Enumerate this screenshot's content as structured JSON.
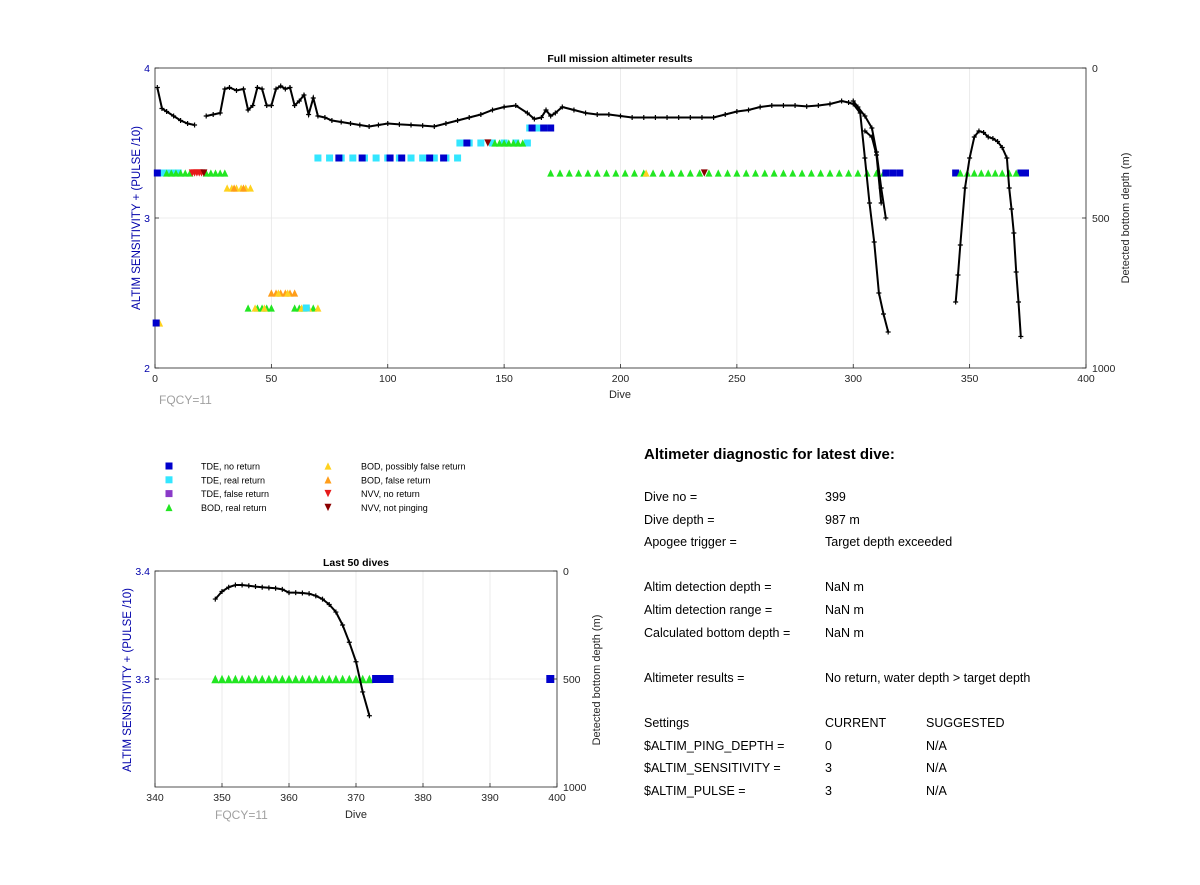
{
  "main_chart": {
    "title": "Full mission altimeter results",
    "annotation": "FQCY=11",
    "colors": {
      "tde_no": "#0000cc",
      "tde_real": "#33e6ff",
      "tde_false": "#8a3ac8",
      "bod_real": "#22e622",
      "bod_possible": "#ffd21f",
      "bod_false": "#ff9d1a",
      "nvv_no": "#e61a1a",
      "nvv_not": "#8b0000",
      "depth_line": "#000000",
      "left_axis": "#0000aa",
      "annotation": "#999999"
    }
  },
  "zoom_chart": {
    "title": "Last 50 dives",
    "annotation": "FQCY=11"
  },
  "legend": {
    "items": [
      {
        "label": "TDE, no return",
        "marker": "square",
        "color": "#0000cc"
      },
      {
        "label": "TDE, real return",
        "marker": "square",
        "color": "#33e6ff"
      },
      {
        "label": "TDE, false return",
        "marker": "square",
        "color": "#8a3ac8"
      },
      {
        "label": "BOD, real return",
        "marker": "triangle-up",
        "color": "#22e622"
      },
      {
        "label": "BOD, possibly false return",
        "marker": "triangle-up",
        "color": "#ffd21f"
      },
      {
        "label": "BOD, false return",
        "marker": "triangle-up",
        "color": "#ff9d1a"
      },
      {
        "label": "NVV, no return",
        "marker": "triangle-down",
        "color": "#e61a1a"
      },
      {
        "label": "NVV, not pinging",
        "marker": "triangle-down",
        "color": "#8b0000"
      }
    ]
  },
  "diagnostic": {
    "title": "Altimeter diagnostic for latest dive:",
    "dive_no_label": "Dive no =",
    "dive_no": "399",
    "dive_depth_label": "Dive depth =",
    "dive_depth": "987 m",
    "apogee_label": "Apogee trigger =",
    "apogee": "Target depth exceeded",
    "det_depth_label": "Altim detection depth =",
    "det_depth": "NaN m",
    "det_range_label": "Altim detection range =",
    "det_range": "NaN m",
    "calc_depth_label": "Calculated bottom depth =",
    "calc_depth": "NaN m",
    "results_label": "Altimeter results =",
    "results": "No return, water depth > target depth",
    "settings_label": "Settings",
    "current_label": "CURRENT",
    "suggested_label": "SUGGESTED",
    "settings": [
      {
        "name": "$ALTIM_PING_DEPTH =",
        "current": "0",
        "suggested": "N/A"
      },
      {
        "name": "$ALTIM_SENSITIVITY =",
        "current": "3",
        "suggested": "N/A"
      },
      {
        "name": "$ALTIM_PULSE =",
        "current": "3",
        "suggested": "N/A"
      }
    ]
  },
  "chart_data": [
    {
      "type": "scatter",
      "title": "Full mission altimeter results",
      "xlabel": "Dive",
      "ylabel": "ALTIM SENSITIVITY + (PULSE /10)",
      "y2label": "Detected bottom depth (m)",
      "xlim": [
        0,
        400
      ],
      "ylim": [
        2,
        4
      ],
      "y2lim": [
        0,
        1000
      ],
      "y2_reversed": true,
      "grid": true,
      "xticks": [
        "0",
        "50",
        "100",
        "150",
        "200",
        "250",
        "300",
        "350",
        "400"
      ],
      "yticks": [
        "2",
        "3",
        "4"
      ],
      "y2ticks": [
        "0",
        "500",
        "1000"
      ],
      "markers": [
        {
          "series": "TDE, real return",
          "y": 3.3,
          "x": [
            2,
            4,
            6,
            8,
            10
          ]
        },
        {
          "series": "TDE, no return",
          "y": 3.3,
          "x": [
            1
          ]
        },
        {
          "series": "BOD, real return",
          "y": 3.3,
          "x": [
            5,
            7,
            9,
            11,
            13,
            15,
            22,
            24,
            26,
            28,
            30
          ]
        },
        {
          "series": "NVV, no return",
          "y": 3.3,
          "x": [
            16,
            17,
            18,
            19,
            20
          ]
        },
        {
          "series": "NVV, not pinging",
          "y": 3.3,
          "x": [
            21
          ]
        },
        {
          "series": "BOD, possibly false return",
          "y": 3.2,
          "x": [
            31,
            33,
            35,
            37,
            39,
            41
          ]
        },
        {
          "series": "BOD, false return",
          "y": 3.2,
          "x": [
            34,
            38
          ]
        },
        {
          "series": "TDE, real return",
          "y": 3.4,
          "x": [
            70,
            75,
            80,
            85,
            90,
            95,
            100,
            105,
            110,
            115,
            120,
            125,
            130
          ]
        },
        {
          "series": "TDE, no return",
          "y": 3.4,
          "x": [
            79,
            89,
            101,
            106,
            118,
            124
          ]
        },
        {
          "series": "TDE, real return",
          "y": 3.5,
          "x": [
            131,
            135,
            140,
            145,
            150,
            155,
            160
          ]
        },
        {
          "series": "TDE, no return",
          "y": 3.5,
          "x": [
            134
          ]
        },
        {
          "series": "BOD, real return",
          "y": 3.5,
          "x": [
            146,
            148,
            150,
            152,
            154,
            156,
            158
          ]
        },
        {
          "series": "NVV, not pinging",
          "y": 3.5,
          "x": [
            143
          ]
        },
        {
          "series": "TDE, real return",
          "y": 3.6,
          "x": [
            161,
            163,
            165,
            168
          ]
        },
        {
          "series": "TDE, no return",
          "y": 3.6,
          "x": [
            162,
            167,
            170
          ]
        },
        {
          "series": "BOD, real return",
          "y": 3.3,
          "x": [
            170,
            174,
            178,
            182,
            186,
            190,
            194,
            198,
            202,
            206,
            210,
            214,
            218,
            222,
            226,
            230,
            234,
            238,
            242,
            246,
            250,
            254,
            258,
            262,
            266,
            270,
            274,
            278,
            282,
            286,
            290,
            294,
            298,
            302,
            306,
            310,
            313
          ]
        },
        {
          "series": "BOD, possibly false return",
          "y": 3.3,
          "x": [
            211
          ]
        },
        {
          "series": "NVV, not pinging",
          "y": 3.3,
          "x": [
            236
          ]
        },
        {
          "series": "TDE, no return",
          "y": 3.3,
          "x": [
            314,
            317,
            320
          ]
        },
        {
          "series": "TDE, no return",
          "y": 3.3,
          "x": [
            344,
            372,
            374
          ]
        },
        {
          "series": "BOD, real return",
          "y": 3.3,
          "x": [
            346,
            349,
            352,
            355,
            358,
            361,
            364,
            367,
            370
          ]
        },
        {
          "series": "BOD, false return",
          "y": 2.5,
          "x": [
            50,
            52,
            54,
            56,
            58,
            60
          ]
        },
        {
          "series": "BOD, possibly false return",
          "y": 2.5,
          "x": [
            53,
            57
          ]
        },
        {
          "series": "BOD, real return",
          "y": 2.4,
          "x": [
            40,
            44,
            46,
            48,
            50
          ]
        },
        {
          "series": "BOD, possibly false return",
          "y": 2.4,
          "x": [
            43,
            47
          ]
        },
        {
          "series": "BOD, real return",
          "y": 2.4,
          "x": [
            60,
            62,
            64,
            68
          ]
        },
        {
          "series": "BOD, possibly false return",
          "y": 2.4,
          "x": [
            63,
            66,
            70
          ]
        },
        {
          "series": "TDE, real return",
          "y": 2.4,
          "x": [
            65
          ]
        },
        {
          "series": "BOD, possibly false return",
          "y": 2.3,
          "x": [
            2
          ]
        },
        {
          "series": "TDE, no return",
          "y": 2.3,
          "x": [
            0.5
          ]
        }
      ],
      "depth_series": [
        {
          "x": [
            1,
            3,
            5,
            8,
            11,
            14,
            17
          ],
          "y": [
            65,
            135,
            145,
            160,
            175,
            185,
            190
          ]
        },
        {
          "x": [
            22,
            25,
            28,
            30,
            32,
            35,
            38,
            40,
            42,
            44,
            46,
            48,
            50,
            52,
            54,
            56,
            58,
            60,
            62,
            64,
            66,
            68,
            70,
            73,
            76,
            80,
            84,
            88,
            92,
            96,
            100,
            105,
            110,
            115,
            120,
            125,
            130,
            135,
            140,
            145,
            150,
            155,
            160,
            163,
            166,
            168,
            170,
            172,
            175,
            180,
            185,
            190,
            195,
            200,
            205,
            210,
            215,
            220,
            225,
            230,
            235,
            240,
            245,
            250,
            255,
            260,
            265,
            270,
            275,
            280,
            285,
            290,
            295,
            298,
            300,
            303,
            305,
            307,
            309,
            311,
            313,
            315
          ],
          "y": [
            160,
            155,
            150,
            70,
            65,
            75,
            70,
            140,
            125,
            65,
            70,
            125,
            125,
            70,
            60,
            70,
            65,
            125,
            110,
            90,
            155,
            100,
            160,
            165,
            175,
            180,
            185,
            190,
            195,
            190,
            185,
            188,
            190,
            192,
            195,
            185,
            175,
            165,
            155,
            140,
            130,
            125,
            150,
            170,
            165,
            140,
            160,
            150,
            130,
            140,
            150,
            155,
            155,
            160,
            165,
            165,
            165,
            165,
            165,
            165,
            165,
            165,
            155,
            145,
            140,
            130,
            125,
            125,
            125,
            128,
            125,
            120,
            110,
            115,
            120,
            150,
            300,
            450,
            580,
            750,
            820,
            880
          ]
        },
        {
          "x": [
            300,
            302,
            305,
            308,
            310,
            312,
            314
          ],
          "y": [
            110,
            130,
            160,
            200,
            280,
            400,
            500
          ]
        },
        {
          "x": [
            344,
            345,
            346,
            348,
            350,
            352,
            354,
            356,
            358,
            360,
            362,
            364,
            366,
            367,
            368,
            369,
            370,
            371,
            372
          ],
          "y": [
            780,
            690,
            590,
            400,
            300,
            230,
            210,
            215,
            230,
            235,
            245,
            265,
            300,
            400,
            470,
            550,
            680,
            780,
            895
          ]
        },
        {
          "x": [
            305,
            308,
            310,
            312
          ],
          "y": [
            210,
            230,
            290,
            450
          ]
        }
      ]
    },
    {
      "type": "scatter",
      "title": "Last 50 dives",
      "xlabel": "Dive",
      "ylabel": "ALTIM SENSITIVITY + (PULSE /10)",
      "y2label": "Detected bottom depth (m)",
      "xlim": [
        340,
        400
      ],
      "ylim": [
        3.2,
        3.4
      ],
      "y2lim": [
        0,
        1000
      ],
      "y2_reversed": true,
      "grid": true,
      "xticks": [
        "340",
        "350",
        "360",
        "370",
        "380",
        "390",
        "400"
      ],
      "yticks": [
        "3.3",
        "3.4"
      ],
      "y2ticks": [
        "0",
        "500",
        "1000"
      ],
      "markers": [
        {
          "series": "BOD, real return",
          "y": 3.3,
          "x": [
            349,
            350,
            351,
            352,
            353,
            354,
            355,
            356,
            357,
            358,
            359,
            360,
            361,
            362,
            363,
            364,
            365,
            366,
            367,
            368,
            369,
            370,
            371,
            372
          ]
        },
        {
          "series": "TDE, no return",
          "y": 3.3,
          "x": [
            373,
            374,
            375,
            399
          ]
        }
      ],
      "depth_series": [
        {
          "x": [
            349,
            350,
            351,
            352,
            353,
            354,
            355,
            356,
            357,
            358,
            359,
            360,
            361,
            362,
            363,
            364,
            365,
            366,
            367,
            368,
            369,
            370,
            371,
            372
          ],
          "y": [
            130,
            95,
            75,
            65,
            65,
            68,
            72,
            75,
            78,
            80,
            85,
            100,
            100,
            102,
            105,
            115,
            130,
            155,
            190,
            250,
            330,
            420,
            560,
            670
          ]
        }
      ]
    }
  ]
}
